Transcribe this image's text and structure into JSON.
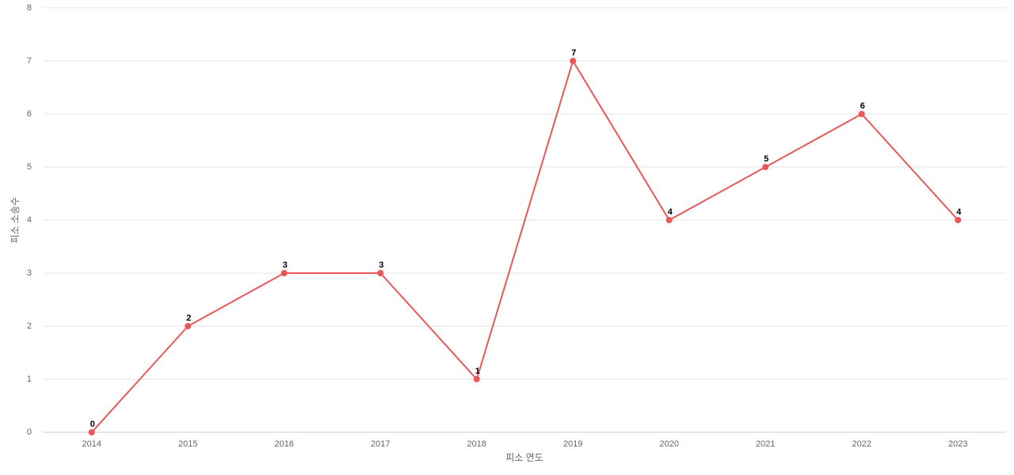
{
  "chart_data": {
    "type": "line",
    "x_label": "피소 연도",
    "y_label": "피소 소송수",
    "categories": [
      "2014",
      "2015",
      "2016",
      "2017",
      "2018",
      "2019",
      "2020",
      "2021",
      "2022",
      "2023"
    ],
    "values": [
      0,
      2,
      3,
      3,
      1,
      7,
      4,
      5,
      6,
      4
    ],
    "color": "#e8585a",
    "ylim": [
      0,
      8
    ],
    "yticks": [
      0,
      1,
      2,
      3,
      4,
      5,
      6,
      7,
      8
    ],
    "grid": true
  }
}
